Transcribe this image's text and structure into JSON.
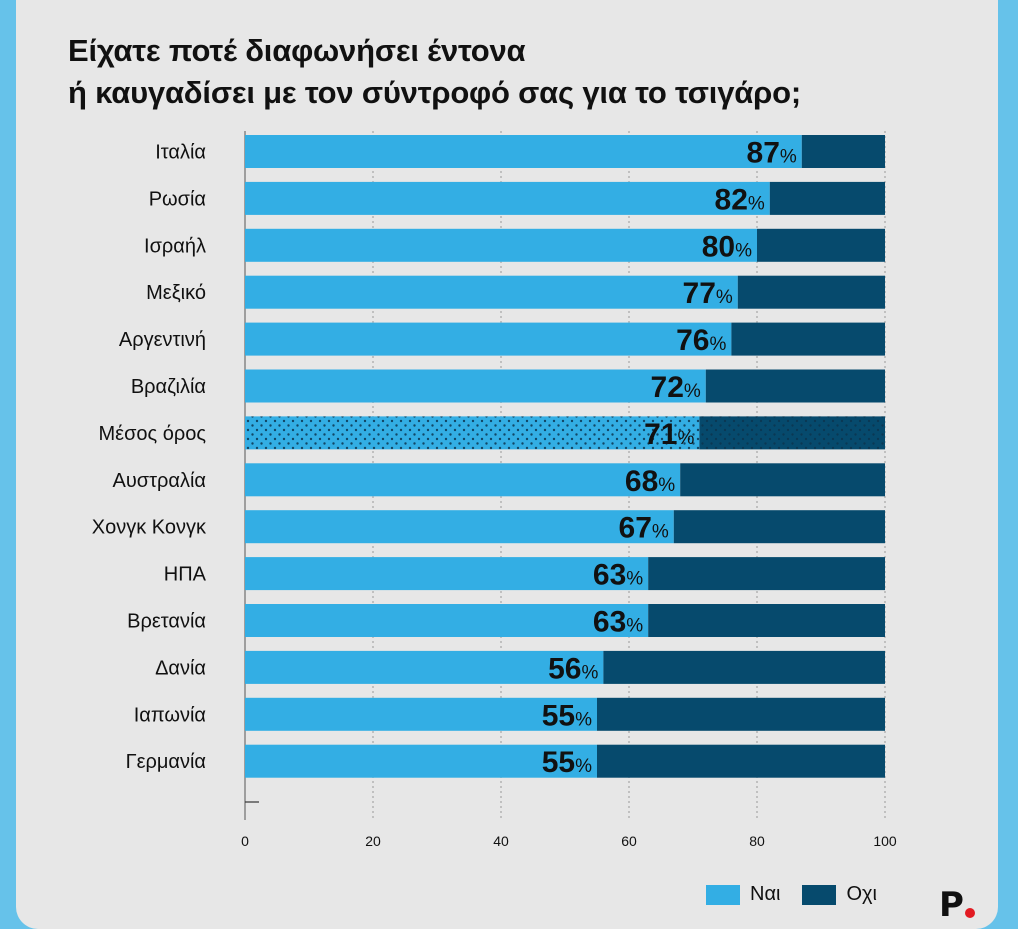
{
  "chart_data": {
    "type": "bar",
    "orientation": "horizontal",
    "stacked": true,
    "title_lines": [
      "Είχατε ποτέ διαφωνήσει έντονα",
      "ή καυγαδίσει με τον σύντροφό σας για το τσιγάρο;"
    ],
    "categories": [
      "Ιταλία",
      "Ρωσία",
      "Ισραήλ",
      "Μεξικό",
      "Αργεντινή",
      "Βραζιλία",
      "Μέσος όρος",
      "Αυστραλία",
      "Χονγκ Κονγκ",
      "ΗΠΑ",
      "Βρετανία",
      "Δανία",
      "Ιαπωνία",
      "Γερμανία"
    ],
    "series": [
      {
        "name": "Ναι",
        "color": "#33aee4",
        "values": [
          87,
          82,
          80,
          77,
          76,
          72,
          71,
          68,
          67,
          63,
          63,
          56,
          55,
          55
        ]
      },
      {
        "name": "Οχι",
        "color": "#064a6d",
        "values": [
          13,
          18,
          20,
          23,
          24,
          28,
          29,
          32,
          33,
          37,
          37,
          44,
          45,
          45
        ]
      }
    ],
    "highlight_category": "Μέσος όρος",
    "highlight_style": "dotted",
    "value_suffix": "%",
    "xlim": [
      0,
      100
    ],
    "xticks": [
      0,
      20,
      40,
      60,
      80,
      100
    ],
    "grid": "vertical-dashed",
    "legend_position": "bottom-right"
  },
  "legend": {
    "yes_label": "Ναι",
    "no_label": "Οχι"
  },
  "logo": {
    "letter": "P"
  }
}
